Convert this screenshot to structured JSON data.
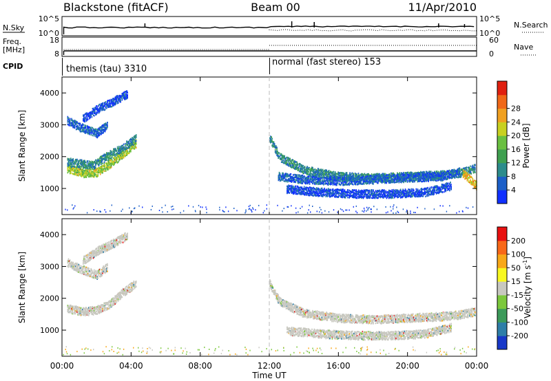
{
  "header": {
    "station": "Blackstone (fitACF)",
    "beam": "Beam 00",
    "date": "11/Apr/2010"
  },
  "side_labels": {
    "nsky": "N.Sky",
    "nsearch": "N.Search",
    "freq_line1": "Freq.",
    "freq_line2": "[MHz]",
    "nave": "Nave",
    "cpid": "CPID"
  },
  "noise_panel": {
    "left_ticks": [
      "10^5",
      "10^0"
    ],
    "right_ticks": [
      "10^5",
      "10^0"
    ]
  },
  "freq_panel": {
    "left_ticks": [
      "18",
      "8"
    ],
    "right_ticks": [
      "60",
      "0"
    ]
  },
  "cpid_panel": {
    "segments": [
      {
        "label": "themis (tau) 3310",
        "start_hour": 0
      },
      {
        "label": "normal (fast stereo) 153",
        "start_hour": 12
      }
    ]
  },
  "x_axis": {
    "title": "Time UT",
    "ticks": [
      "00:00",
      "04:00",
      "08:00",
      "12:00",
      "16:00",
      "20:00",
      "00:00"
    ],
    "tick_hours": [
      0,
      4,
      8,
      12,
      16,
      20,
      24
    ]
  },
  "chart_data": [
    {
      "type": "heatmap",
      "name": "power-panel",
      "ylabel": "Slant Range [km]",
      "ylim": [
        180,
        4500
      ],
      "yticks": [
        1000,
        2000,
        3000,
        4000
      ],
      "xlim": [
        0,
        24
      ],
      "colorbar": {
        "label": "Power [dB]",
        "ticks": [
          "4",
          "8",
          "12",
          "16",
          "20",
          "24",
          "28"
        ],
        "colors": [
          "#1030ff",
          "#1c5fc8",
          "#2c8c8c",
          "#3fa050",
          "#6ac040",
          "#c8d020",
          "#f0a020",
          "#f06818",
          "#e02010"
        ]
      },
      "bands": [
        {
          "hours": [
            0.3,
            1.2,
            2.0,
            2.8,
            3.5,
            4.3
          ],
          "ranges": [
            1650,
            1500,
            1520,
            1800,
            2100,
            2450
          ],
          "value": 20
        },
        {
          "hours": [
            0.3,
            1.0,
            1.8,
            2.5,
            3.5,
            4.3
          ],
          "ranges": [
            1850,
            1800,
            1750,
            2000,
            2300,
            2600
          ],
          "value": 10
        },
        {
          "hours": [
            0.3,
            1.0,
            2.0,
            2.6
          ],
          "ranges": [
            3150,
            2950,
            2750,
            3000
          ],
          "value": 6
        },
        {
          "hours": [
            1.2,
            2.0,
            2.8,
            3.8
          ],
          "ranges": [
            3200,
            3500,
            3700,
            4000
          ],
          "value": 4
        },
        {
          "hours": [
            12.0,
            12.6,
            14.0,
            16.0,
            18.0,
            20.0,
            22.0,
            23.0,
            23.9
          ],
          "ranges": [
            2600,
            2000,
            1600,
            1400,
            1350,
            1400,
            1450,
            1500,
            1650
          ],
          "value": 10
        },
        {
          "hours": [
            12.5,
            14.0,
            16.0,
            18.0,
            20.0,
            22.0,
            23.0
          ],
          "ranges": [
            1400,
            1300,
            1250,
            1300,
            1350,
            1400,
            1550
          ],
          "value": 6
        },
        {
          "hours": [
            13.0,
            15.0,
            17.0,
            19.0,
            21.0,
            22.5
          ],
          "ranges": [
            1000,
            900,
            850,
            850,
            900,
            1100
          ],
          "value": 4
        },
        {
          "hours": [
            23.2,
            23.6,
            24.0
          ],
          "ranges": [
            1500,
            1300,
            1100
          ],
          "value": 24
        }
      ]
    },
    {
      "type": "heatmap",
      "name": "velocity-panel",
      "ylabel": "Slant Range [km]",
      "ylim": [
        180,
        4500
      ],
      "yticks": [
        1000,
        2000,
        3000,
        4000
      ],
      "xlim": [
        0,
        24
      ],
      "colorbar": {
        "label": "Velocity [m s^-1]",
        "ticks": [
          "200",
          "100",
          "50",
          "15",
          "-15",
          "-50",
          "-100",
          "-200"
        ],
        "colors": [
          "#1838c8",
          "#2e7ea8",
          "#3c9a5a",
          "#7cc83c",
          "#c8c8c0",
          "#f8f820",
          "#f8a818",
          "#f86818",
          "#e81010"
        ]
      },
      "bands": [
        {
          "hours": [
            0.3,
            1.2,
            2.0,
            2.8,
            3.5,
            4.3
          ],
          "ranges": [
            1700,
            1600,
            1650,
            1850,
            2200,
            2500
          ],
          "value": 0
        },
        {
          "hours": [
            0.3,
            1.0,
            2.0,
            2.6
          ],
          "ranges": [
            3150,
            2950,
            2750,
            3000
          ],
          "value": 0
        },
        {
          "hours": [
            1.2,
            2.0,
            2.8,
            3.8
          ],
          "ranges": [
            3200,
            3500,
            3700,
            4000
          ],
          "value": 0
        },
        {
          "hours": [
            12.0,
            12.6,
            14.0,
            16.0,
            18.0,
            20.0,
            22.0,
            23.0,
            23.9
          ],
          "ranges": [
            2500,
            1900,
            1550,
            1400,
            1350,
            1400,
            1450,
            1500,
            1600
          ],
          "value": 0
        },
        {
          "hours": [
            13.0,
            15.0,
            17.0,
            19.0,
            21.0,
            22.5
          ],
          "ranges": [
            1000,
            900,
            850,
            850,
            900,
            1100
          ],
          "value": 0
        }
      ]
    }
  ]
}
